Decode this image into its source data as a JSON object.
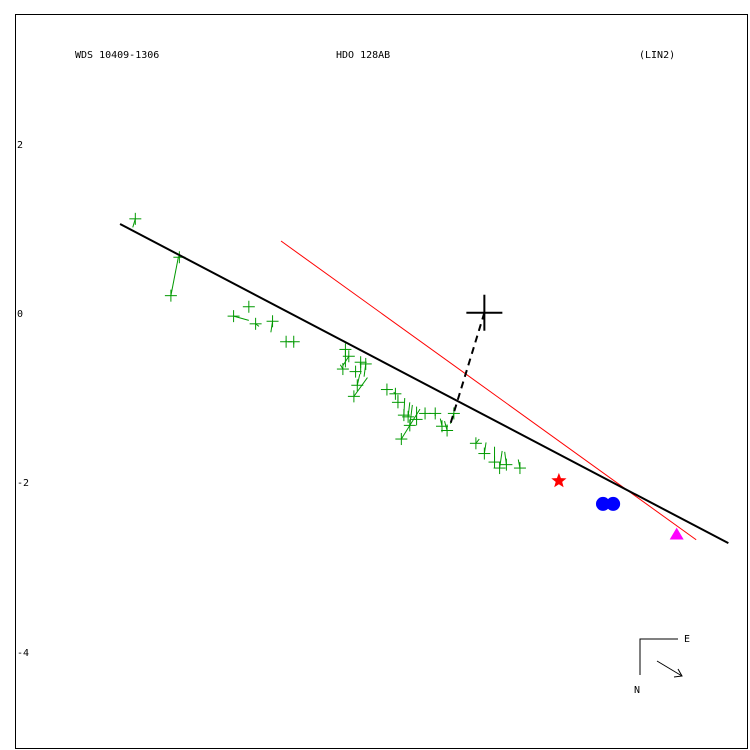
{
  "header": {
    "left": "WDS 10409-1306",
    "center": "HDO 128AB",
    "right": "(LIN2)"
  },
  "compass": {
    "east": "E",
    "north": "N"
  },
  "colors": {
    "fit_line": "#000000",
    "comparison_line": "#ff0000",
    "observations": "#009900",
    "star_marker": "#ff0000",
    "dot_marker": "#0000ff",
    "triangle_marker": "#ff00ff"
  },
  "chart_data": {
    "type": "scatter",
    "title": "",
    "xlabel": "",
    "ylabel": "",
    "yticks": [
      "2",
      "0",
      "-2",
      "-4"
    ],
    "ytick_values": [
      2,
      0,
      -2,
      -4
    ],
    "x_range": [
      -3.54,
      5.1
    ],
    "y_range": [
      3.5,
      -5.1
    ],
    "primary": {
      "x": 2.0,
      "y": 0.0
    },
    "observations": [
      {
        "x": -2.12,
        "y": 1.1,
        "fx": -2.15,
        "fy": 1.0
      },
      {
        "x": -1.7,
        "y": 0.2,
        "fx": -1.61,
        "fy": 0.66
      },
      {
        "x": -1.6,
        "y": 0.65,
        "fx": -1.61,
        "fy": 0.66
      },
      {
        "x": -0.78,
        "y": 0.07,
        "fx": -0.78,
        "fy": 0.07
      },
      {
        "x": -0.96,
        "y": -0.04,
        "fx": -0.78,
        "fy": -0.09
      },
      {
        "x": -0.7,
        "y": -0.13,
        "fx": -0.66,
        "fy": -0.16
      },
      {
        "x": -0.5,
        "y": -0.1,
        "fx": -0.52,
        "fy": -0.23
      },
      {
        "x": -0.34,
        "y": -0.34,
        "fx": -0.34,
        "fy": -0.32
      },
      {
        "x": -0.25,
        "y": -0.34,
        "fx": -0.25,
        "fy": -0.37
      },
      {
        "x": 0.36,
        "y": -0.43,
        "fx": 0.36,
        "fy": -0.64
      },
      {
        "x": 0.4,
        "y": -0.51,
        "fx": 0.33,
        "fy": -0.62
      },
      {
        "x": 0.33,
        "y": -0.66,
        "fx": 0.3,
        "fy": -0.61
      },
      {
        "x": 0.48,
        "y": -0.69,
        "fx": 0.48,
        "fy": -0.7
      },
      {
        "x": 0.54,
        "y": -0.58,
        "fx": 0.54,
        "fy": -0.72
      },
      {
        "x": 0.6,
        "y": -0.6,
        "fx": 0.58,
        "fy": -0.75
      },
      {
        "x": 0.5,
        "y": -0.85,
        "fx": 0.53,
        "fy": -0.72
      },
      {
        "x": 0.46,
        "y": -0.98,
        "fx": 0.62,
        "fy": -0.76
      },
      {
        "x": 0.85,
        "y": -0.9,
        "fx": 0.85,
        "fy": -0.89
      },
      {
        "x": 0.95,
        "y": -0.95,
        "fx": 0.93,
        "fy": -0.93
      },
      {
        "x": 0.98,
        "y": -1.05,
        "fx": 0.98,
        "fy": -0.96
      },
      {
        "x": 1.05,
        "y": -1.2,
        "fx": 1.06,
        "fy": -1.0
      },
      {
        "x": 1.1,
        "y": -1.22,
        "fx": 1.12,
        "fy": -1.05
      },
      {
        "x": 1.12,
        "y": -1.32,
        "fx": 1.15,
        "fy": -1.08
      },
      {
        "x": 1.2,
        "y": -1.25,
        "fx": 1.2,
        "fy": -1.1
      },
      {
        "x": 1.3,
        "y": -1.18,
        "fx": 1.3,
        "fy": -1.15
      },
      {
        "x": 1.02,
        "y": -1.48,
        "fx": 1.24,
        "fy": -1.13
      },
      {
        "x": 1.42,
        "y": -1.18,
        "fx": 1.42,
        "fy": -1.21
      },
      {
        "x": 1.5,
        "y": -1.33,
        "fx": 1.48,
        "fy": -1.24
      },
      {
        "x": 1.56,
        "y": -1.38,
        "fx": 1.53,
        "fy": -1.27
      },
      {
        "x": 1.64,
        "y": -1.18,
        "fx": 1.6,
        "fy": -1.3
      },
      {
        "x": 1.9,
        "y": -1.53,
        "fx": 1.94,
        "fy": -1.48
      },
      {
        "x": 2.0,
        "y": -1.65,
        "fx": 2.02,
        "fy": -1.52
      },
      {
        "x": 2.12,
        "y": -1.75,
        "fx": 2.12,
        "fy": -1.57
      },
      {
        "x": 2.18,
        "y": -1.82,
        "fx": 2.21,
        "fy": -1.62
      },
      {
        "x": 2.26,
        "y": -1.78,
        "fx": 2.24,
        "fy": -1.63
      },
      {
        "x": 2.42,
        "y": -1.82,
        "fx": 2.4,
        "fy": -1.72
      }
    ],
    "fit_line": {
      "x1": -2.3,
      "y1": 1.04,
      "x2": 4.88,
      "y2": -2.7
    },
    "comparison_line": {
      "x1": -0.4,
      "y1": 0.84,
      "x2": 4.5,
      "y2": -2.66
    },
    "node_link": {
      "x1": 2.0,
      "y1": 0.0,
      "x2": 1.6,
      "y2": -1.3
    },
    "star": {
      "x": 2.88,
      "y": -1.97
    },
    "dots": [
      {
        "x": 3.4,
        "y": -2.24
      },
      {
        "x": 3.52,
        "y": -2.24
      }
    ],
    "triangle": {
      "x": 4.27,
      "y": -2.6
    }
  }
}
